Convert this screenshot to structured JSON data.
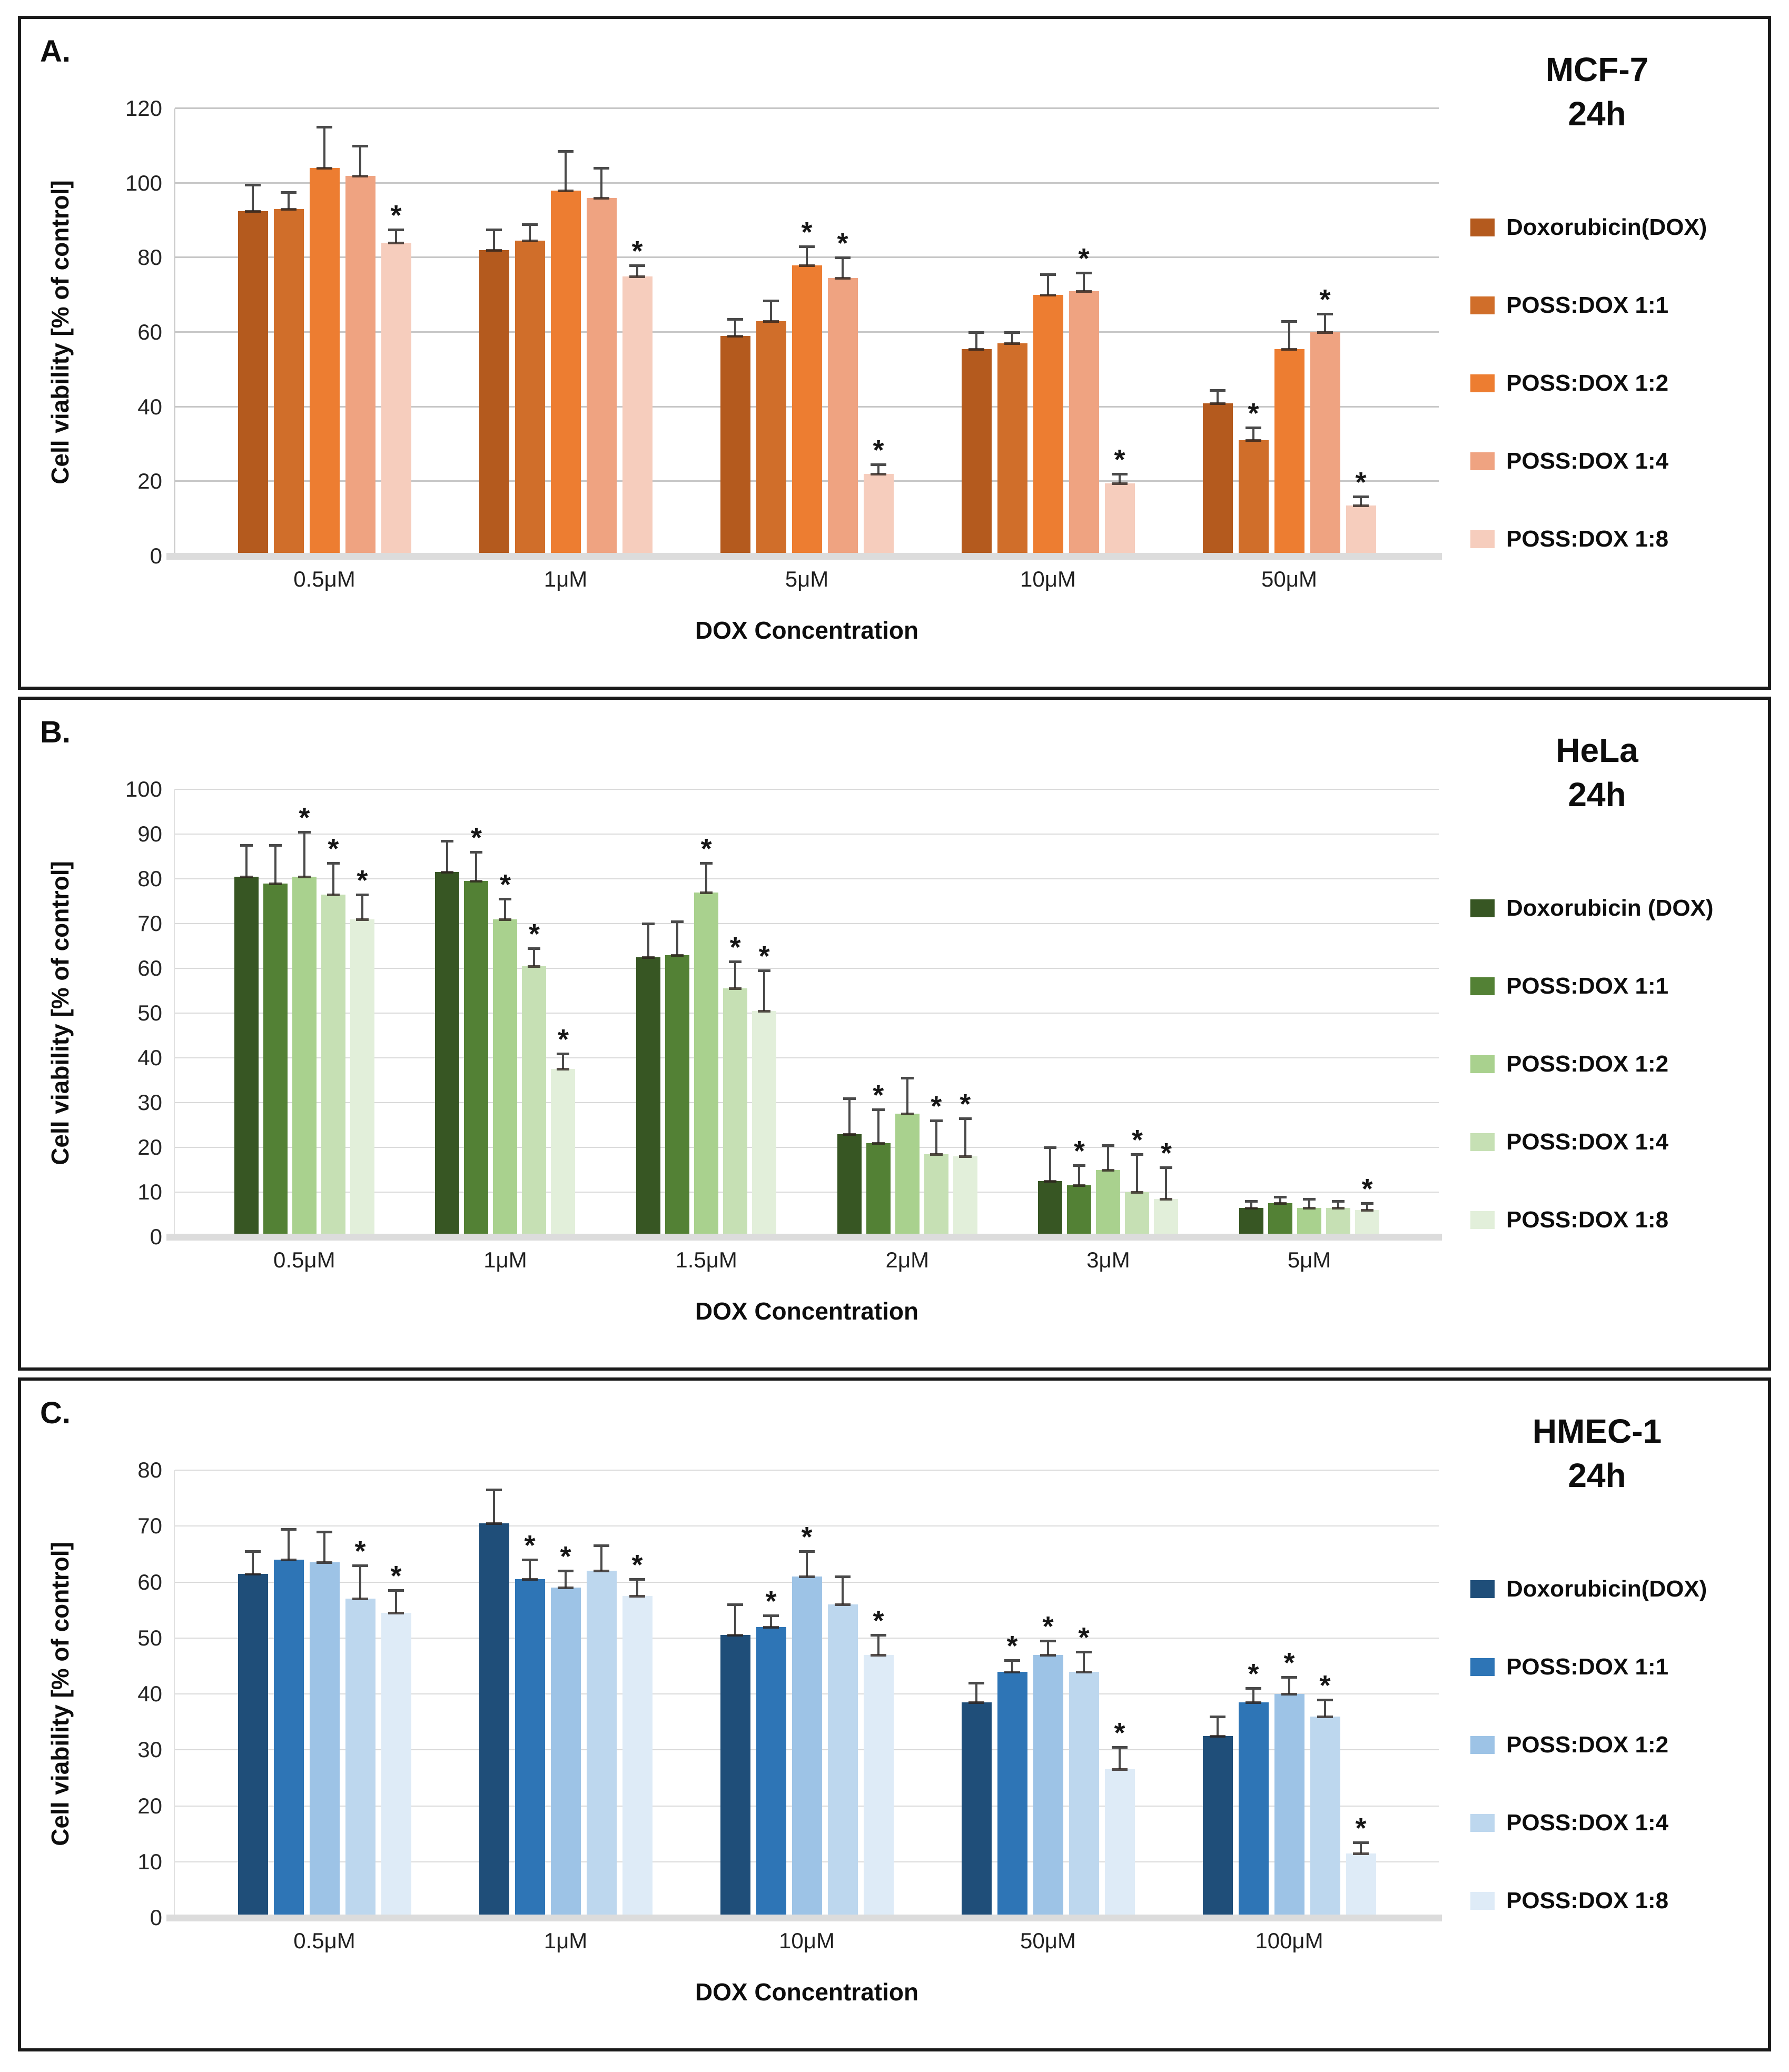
{
  "chart_data": [
    {
      "type": "bar",
      "panel_label": "A.",
      "title": "MCF-7",
      "subtitle": "24h",
      "xlabel": "DOX Concentration",
      "ylabel": "Cell viability [% of control]",
      "ylim": [
        0,
        120
      ],
      "yticks": [
        0,
        20,
        40,
        60,
        80,
        100,
        120
      ],
      "grid": true,
      "legend_position": "right",
      "categories": [
        "0.5μM",
        "1μM",
        "5μM",
        "10μM",
        "50μM"
      ],
      "series": [
        {
          "name": "Doxorubicin(DOX)",
          "color": "#b45a1e",
          "values": [
            92.5,
            82,
            59,
            55.5,
            41
          ],
          "errors": [
            7,
            5.5,
            4.5,
            4.5,
            3.5
          ],
          "sig": [
            false,
            false,
            false,
            false,
            false
          ]
        },
        {
          "name": "POSS:DOX 1:1",
          "color": "#d06e2a",
          "values": [
            93,
            84.5,
            63,
            57,
            31
          ],
          "errors": [
            4.5,
            4.5,
            5.5,
            3,
            3.5
          ],
          "sig": [
            false,
            false,
            false,
            false,
            true
          ]
        },
        {
          "name": "POSS:DOX 1:2",
          "color": "#ed7d31",
          "values": [
            104,
            98,
            78,
            70,
            55.5
          ],
          "errors": [
            11,
            10.5,
            5,
            5.5,
            7.5
          ],
          "sig": [
            false,
            false,
            true,
            false,
            false
          ]
        },
        {
          "name": "POSS:DOX 1:4",
          "color": "#efa381",
          "values": [
            102,
            96,
            74.5,
            71,
            60
          ],
          "errors": [
            8,
            8,
            5.5,
            5,
            5
          ],
          "sig": [
            false,
            false,
            true,
            true,
            true
          ]
        },
        {
          "name": "POSS:DOX 1:8",
          "color": "#f6cdbd",
          "values": [
            84,
            75,
            22,
            19.5,
            13.5
          ],
          "errors": [
            3.5,
            3,
            2.5,
            2.5,
            2.5
          ],
          "sig": [
            true,
            true,
            true,
            true,
            true
          ]
        }
      ]
    },
    {
      "type": "bar",
      "panel_label": "B.",
      "title": "HeLa",
      "subtitle": "24h",
      "xlabel": "DOX Concentration",
      "ylabel": "Cell viability [% of control]",
      "ylim": [
        0,
        100
      ],
      "yticks": [
        0,
        10,
        20,
        30,
        40,
        50,
        60,
        70,
        80,
        90,
        100
      ],
      "grid": true,
      "legend_position": "right",
      "categories": [
        "0.5μM",
        "1μM",
        "1.5μM",
        "2μM",
        "3μM",
        "5μM"
      ],
      "series": [
        {
          "name": "Doxorubicin (DOX)",
          "color": "#375623",
          "values": [
            80.5,
            81.5,
            62.5,
            23,
            12.5,
            6.5
          ],
          "errors": [
            7,
            7,
            7.5,
            8,
            7.5,
            1.5
          ],
          "sig": [
            false,
            false,
            false,
            false,
            false,
            false
          ]
        },
        {
          "name": "POSS:DOX 1:1",
          "color": "#538135",
          "values": [
            79,
            79.5,
            63,
            21,
            11.5,
            7.5
          ],
          "errors": [
            8.5,
            6.5,
            7.5,
            7.5,
            4.5,
            1.5
          ],
          "sig": [
            false,
            true,
            false,
            true,
            true,
            false
          ]
        },
        {
          "name": "POSS:DOX 1:2",
          "color": "#a9d18e",
          "values": [
            80.5,
            71,
            77,
            27.5,
            15,
            6.5
          ],
          "errors": [
            10,
            4.5,
            6.5,
            8,
            5.5,
            2
          ],
          "sig": [
            true,
            true,
            true,
            false,
            false,
            false
          ]
        },
        {
          "name": "POSS:DOX 1:4",
          "color": "#c6e0b4",
          "values": [
            76.5,
            60.5,
            55.5,
            18.5,
            10,
            6.5
          ],
          "errors": [
            7,
            4,
            6,
            7.5,
            8.5,
            1.5
          ],
          "sig": [
            true,
            true,
            true,
            true,
            true,
            false
          ]
        },
        {
          "name": "POSS:DOX 1:8",
          "color": "#e2efda",
          "values": [
            71,
            37.5,
            50.5,
            18,
            8.5,
            6
          ],
          "errors": [
            5.5,
            3.5,
            9,
            8.5,
            7,
            1.5
          ],
          "sig": [
            true,
            true,
            true,
            true,
            true,
            true
          ]
        }
      ]
    },
    {
      "type": "bar",
      "panel_label": "C.",
      "title": "HMEC-1",
      "subtitle": "24h",
      "xlabel": "DOX Concentration",
      "ylabel": "Cell viability [% of control]",
      "ylim": [
        0,
        80
      ],
      "yticks": [
        0,
        10,
        20,
        30,
        40,
        50,
        60,
        70,
        80
      ],
      "grid": true,
      "legend_position": "right",
      "categories": [
        "0.5μM",
        "1μM",
        "10μM",
        "50μM",
        "100μM"
      ],
      "series": [
        {
          "name": "Doxorubicin(DOX)",
          "color": "#1f4e79",
          "values": [
            61.5,
            70.5,
            50.5,
            38.5,
            32.5
          ],
          "errors": [
            4,
            6,
            5.5,
            3.5,
            3.5
          ],
          "sig": [
            false,
            false,
            false,
            false,
            false
          ]
        },
        {
          "name": "POSS:DOX 1:1",
          "color": "#2e75b6",
          "values": [
            64,
            60.5,
            52,
            44,
            38.5
          ],
          "errors": [
            5.5,
            3.5,
            2,
            2,
            2.5
          ],
          "sig": [
            false,
            true,
            true,
            true,
            true
          ]
        },
        {
          "name": "POSS:DOX 1:2",
          "color": "#9dc3e6",
          "values": [
            63.5,
            59,
            61,
            47,
            40
          ],
          "errors": [
            5.5,
            3,
            4.5,
            2.5,
            3
          ],
          "sig": [
            false,
            true,
            true,
            true,
            true
          ]
        },
        {
          "name": "POSS:DOX 1:4",
          "color": "#bdd7ee",
          "values": [
            57,
            62,
            56,
            44,
            36
          ],
          "errors": [
            6,
            4.5,
            5,
            3.5,
            3
          ],
          "sig": [
            true,
            false,
            false,
            true,
            true
          ]
        },
        {
          "name": "POSS:DOX 1:8",
          "color": "#deebf7",
          "values": [
            54.5,
            57.5,
            47,
            26.5,
            11.5
          ],
          "errors": [
            4,
            3,
            3.5,
            4,
            2
          ],
          "sig": [
            true,
            true,
            true,
            true,
            true
          ]
        }
      ]
    }
  ]
}
